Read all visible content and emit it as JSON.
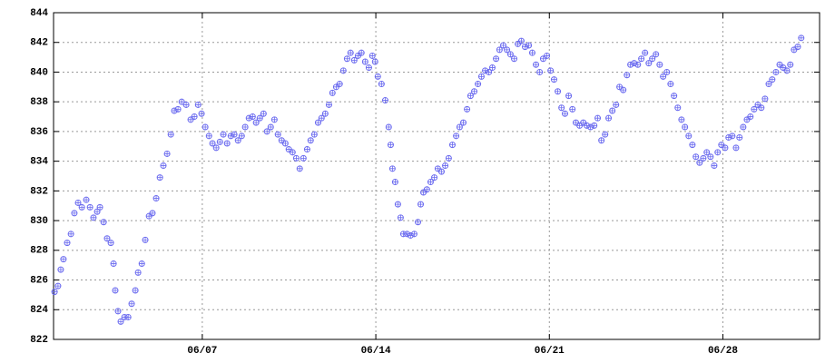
{
  "chart_data": {
    "type": "scatter",
    "color": "#6b6bef",
    "grid": true,
    "xlim": [
      0,
      30.9
    ],
    "xticks": [
      {
        "value": 6,
        "label": "06/07"
      },
      {
        "value": 13,
        "label": "06/14"
      },
      {
        "value": 20,
        "label": "06/21"
      },
      {
        "value": 27,
        "label": "06/28"
      }
    ],
    "ylim": [
      822,
      844
    ],
    "yticks": [
      822,
      824,
      826,
      828,
      830,
      832,
      834,
      836,
      838,
      840,
      842,
      844
    ],
    "x": [
      0.04,
      0.18,
      0.29,
      0.4,
      0.55,
      0.7,
      0.84,
      0.99,
      1.14,
      1.32,
      1.47,
      1.61,
      1.76,
      1.87,
      2.02,
      2.16,
      2.31,
      2.42,
      2.49,
      2.6,
      2.71,
      2.86,
      3.01,
      3.15,
      3.3,
      3.41,
      3.56,
      3.7,
      3.85,
      3.99,
      4.14,
      4.29,
      4.43,
      4.58,
      4.73,
      4.87,
      5.02,
      5.17,
      5.35,
      5.53,
      5.68,
      5.83,
      5.97,
      6.12,
      6.27,
      6.41,
      6.56,
      6.71,
      6.85,
      7.0,
      7.15,
      7.29,
      7.44,
      7.59,
      7.73,
      7.88,
      8.03,
      8.17,
      8.32,
      8.47,
      8.61,
      8.76,
      8.91,
      9.05,
      9.2,
      9.35,
      9.49,
      9.64,
      9.79,
      9.93,
      10.08,
      10.23,
      10.37,
      10.52,
      10.67,
      10.81,
      10.96,
      11.11,
      11.25,
      11.4,
      11.54,
      11.69,
      11.84,
      11.98,
      12.13,
      12.28,
      12.42,
      12.57,
      12.72,
      12.86,
      12.97,
      13.08,
      13.23,
      13.38,
      13.52,
      13.6,
      13.67,
      13.78,
      13.89,
      14.0,
      14.11,
      14.26,
      14.4,
      14.55,
      14.7,
      14.81,
      14.92,
      15.06,
      15.21,
      15.36,
      15.5,
      15.65,
      15.8,
      15.94,
      16.09,
      16.24,
      16.38,
      16.53,
      16.68,
      16.82,
      16.97,
      17.12,
      17.26,
      17.41,
      17.56,
      17.7,
      17.85,
      17.99,
      18.14,
      18.29,
      18.43,
      18.58,
      18.73,
      18.87,
      19.02,
      19.17,
      19.31,
      19.46,
      19.61,
      19.75,
      19.9,
      20.05,
      20.19,
      20.34,
      20.49,
      20.63,
      20.78,
      20.93,
      21.07,
      21.22,
      21.37,
      21.51,
      21.66,
      21.81,
      21.95,
      22.1,
      22.25,
      22.39,
      22.54,
      22.69,
      22.83,
      22.98,
      23.13,
      23.27,
      23.42,
      23.57,
      23.71,
      23.86,
      24.01,
      24.15,
      24.3,
      24.45,
      24.59,
      24.74,
      24.89,
      25.03,
      25.18,
      25.33,
      25.47,
      25.62,
      25.77,
      25.91,
      26.06,
      26.21,
      26.35,
      26.5,
      26.65,
      26.79,
      26.94,
      27.09,
      27.23,
      27.38,
      27.53,
      27.67,
      27.82,
      27.97,
      28.11,
      28.26,
      28.41,
      28.55,
      28.7,
      28.85,
      28.99,
      29.14,
      29.29,
      29.43,
      29.58,
      29.72,
      29.87,
      30.02,
      30.16
    ],
    "values": [
      825.2,
      825.6,
      826.7,
      827.4,
      828.5,
      829.1,
      830.5,
      831.2,
      830.9,
      831.4,
      830.9,
      830.2,
      830.6,
      830.9,
      829.9,
      828.8,
      828.5,
      827.1,
      825.3,
      823.9,
      823.2,
      823.5,
      823.5,
      824.4,
      825.3,
      826.5,
      827.1,
      828.7,
      830.3,
      830.5,
      831.5,
      832.9,
      833.7,
      834.5,
      835.8,
      837.4,
      837.5,
      838.0,
      837.8,
      836.8,
      837.0,
      837.8,
      837.2,
      836.3,
      835.7,
      835.2,
      834.9,
      835.3,
      835.8,
      835.2,
      835.7,
      835.8,
      835.4,
      835.7,
      836.3,
      836.9,
      837.0,
      836.6,
      836.9,
      837.2,
      836.0,
      836.3,
      836.8,
      835.8,
      835.4,
      835.2,
      834.8,
      834.6,
      834.2,
      833.5,
      834.2,
      834.8,
      835.4,
      835.8,
      836.6,
      836.9,
      837.2,
      837.8,
      838.6,
      839.0,
      839.2,
      840.1,
      840.9,
      841.3,
      840.8,
      841.1,
      841.3,
      840.7,
      840.3,
      841.1,
      840.7,
      839.7,
      839.2,
      838.1,
      836.3,
      835.1,
      833.5,
      832.6,
      831.1,
      830.2,
      829.1,
      829.1,
      829.0,
      829.1,
      829.9,
      831.1,
      831.9,
      832.1,
      832.6,
      832.9,
      833.5,
      833.3,
      833.7,
      834.2,
      835.1,
      835.7,
      836.3,
      836.6,
      837.5,
      838.4,
      838.7,
      839.2,
      839.7,
      840.1,
      840.0,
      840.3,
      840.9,
      841.5,
      841.8,
      841.5,
      841.2,
      840.9,
      841.9,
      842.1,
      841.7,
      841.8,
      841.3,
      840.5,
      840.0,
      840.9,
      841.1,
      840.1,
      839.5,
      838.7,
      837.6,
      837.2,
      838.4,
      837.5,
      836.6,
      836.4,
      836.6,
      836.4,
      836.3,
      836.4,
      836.9,
      835.4,
      835.8,
      836.9,
      837.4,
      837.8,
      839.0,
      838.8,
      839.8,
      840.5,
      840.6,
      840.5,
      840.9,
      841.3,
      840.6,
      840.9,
      841.2,
      840.5,
      839.7,
      840.0,
      839.2,
      838.4,
      837.6,
      836.8,
      836.3,
      835.7,
      835.1,
      834.3,
      833.9,
      834.2,
      834.6,
      834.3,
      833.7,
      834.6,
      835.1,
      834.9,
      835.6,
      835.7,
      834.9,
      835.6,
      836.3,
      836.8,
      837.0,
      837.5,
      837.8,
      837.6,
      838.2,
      839.2,
      839.5,
      840.0,
      840.5,
      840.3,
      840.1,
      840.5,
      841.5,
      841.7,
      842.3
    ]
  }
}
